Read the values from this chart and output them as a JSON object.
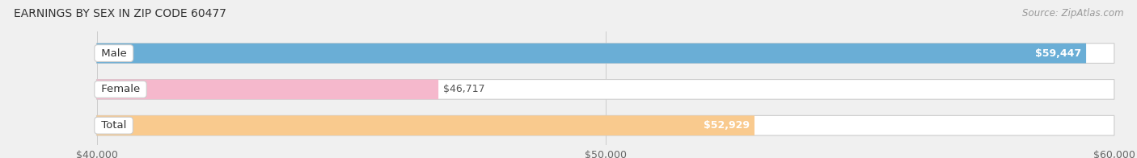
{
  "title": "EARNINGS BY SEX IN ZIP CODE 60477",
  "source": "Source: ZipAtlas.com",
  "categories": [
    "Male",
    "Female",
    "Total"
  ],
  "values": [
    59447,
    46717,
    52929
  ],
  "bar_colors": [
    "#6aaed6",
    "#f5b8cc",
    "#f9ca8e"
  ],
  "value_labels": [
    "$59,447",
    "$46,717",
    "$52,929"
  ],
  "label_inside": [
    true,
    false,
    true
  ],
  "xmin": 40000,
  "xmax": 60000,
  "xticks": [
    40000,
    50000,
    60000
  ],
  "xtick_labels": [
    "$40,000",
    "$50,000",
    "$60,000"
  ],
  "background_color": "#f0f0f0",
  "title_fontsize": 10,
  "source_fontsize": 8.5,
  "label_fontsize": 9,
  "category_fontsize": 9.5,
  "tick_fontsize": 9
}
